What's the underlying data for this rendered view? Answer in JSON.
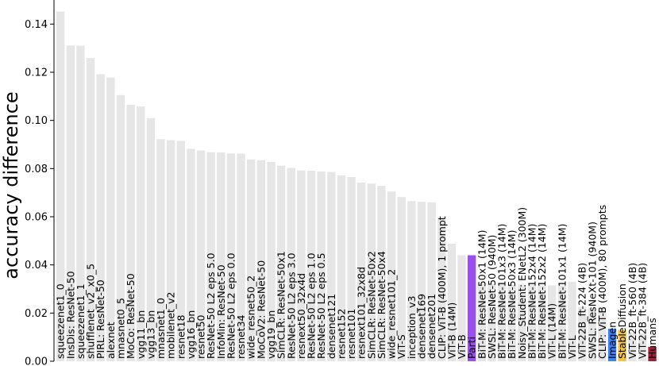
{
  "chart_data": {
    "type": "bar",
    "ylabel": "accuracy difference",
    "xlabel": "",
    "ylim": [
      0,
      0.15
    ],
    "yticks": [
      "0.00",
      "0.02",
      "0.04",
      "0.06",
      "0.08",
      "0.10",
      "0.12",
      "0.14"
    ],
    "grid": false,
    "legend": "none",
    "colors": {
      "default": "#e6e6e6",
      "Parti": "#9b4ef0",
      "Imagen": "#3b82f6",
      "StableDiffusion": "#f5c242",
      "Humans": "#a0203a"
    },
    "categories": [
      "squeezenet1_0",
      "InsDis: ResNet-50",
      "squeezenet1_1",
      "shufflenet_v2_x0_5",
      "PIRL: ResNet-50",
      "alexnet",
      "mnasnet0_5",
      "MoCo: ResNet-50",
      "vgg11_bn",
      "vgg13_bn",
      "mnasnet1_0",
      "mobilenet_v2",
      "resnet18",
      "vgg16_bn",
      "resnet50",
      "ResNet-50 L2 eps 5.0",
      "InfoMin: ResNet-50",
      "ResNet-50 L2 eps 0.0",
      "resnet34",
      "wide_resnet50_2",
      "MoCoV2: ResNet-50",
      "vgg19_bn",
      "SimCLR: ResNet-50x1",
      "ResNet-50 L2 eps 3.0",
      "resnext50_32x4d",
      "ResNet-50 L2 eps 1.0",
      "ResNet-50 L2 eps 0.5",
      "densenet121",
      "resnet152",
      "resnet101",
      "resnext101_32x8d",
      "SimCLR: ResNet-50x2",
      "SimCLR: ResNet-50x4",
      "wide_resnet101_2",
      "ViT-S",
      "inception_v3",
      "densenet169",
      "densenet201",
      "CLIP: ViT-B (400M), 1 prompt",
      "ViT-B (14M)",
      "ViT-B",
      "Parti",
      "BiT-M: ResNet-50x1 (14M)",
      "SWSL: ResNet-50 (940M)",
      "BiT-M: ResNet-101x3 (14M)",
      "BiT-M: ResNet-50x3 (14M)",
      "Noisy_Student: ENetL2 (300M)",
      "BiT-M: ResNet-152x4 (14M)",
      "BiT-M: ResNet-152x2 (14M)",
      "ViT-L (14M)",
      "BiT-M: ResNet-101x1 (14M)",
      "ViT-L",
      "ViT-22B_ft-224 (4B)",
      "SWSL: ResNeXt-101 (940M)",
      "CLIP: ViT-B (400M), 80 prompts",
      "Imagen",
      "StableDiffusion",
      "ViT-22B_ft-560 (4B)",
      "ViT-22B_ft-384 (4B)",
      "Humans"
    ],
    "values": [
      0.1452,
      0.1311,
      0.131,
      0.1259,
      0.1192,
      0.1178,
      0.1105,
      0.1065,
      0.1058,
      0.101,
      0.0922,
      0.0918,
      0.0915,
      0.0882,
      0.0875,
      0.0868,
      0.0867,
      0.0863,
      0.0862,
      0.0838,
      0.0835,
      0.0828,
      0.0812,
      0.0803,
      0.0792,
      0.0791,
      0.0788,
      0.0786,
      0.0772,
      0.0765,
      0.0742,
      0.0738,
      0.0728,
      0.0705,
      0.0682,
      0.0665,
      0.0662,
      0.066,
      0.06,
      0.0488,
      0.044,
      0.044,
      0.0325,
      0.032,
      0.032,
      0.0318,
      0.0318,
      0.0317,
      0.0315,
      0.0315,
      0.0315,
      0.033,
      0.0225,
      0.0222,
      0.0222,
      0.0135,
      0.013,
      0.012,
      0.0115,
      0.006
    ]
  }
}
